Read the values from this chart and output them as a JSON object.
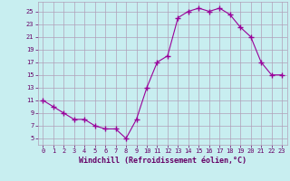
{
  "x": [
    0,
    1,
    2,
    3,
    4,
    5,
    6,
    7,
    8,
    9,
    10,
    11,
    12,
    13,
    14,
    15,
    16,
    17,
    18,
    19,
    20,
    21,
    22,
    23
  ],
  "y": [
    11,
    10,
    9,
    8,
    8,
    7,
    6.5,
    6.5,
    5,
    8,
    13,
    17,
    18,
    24,
    25,
    25.5,
    25,
    25.5,
    24.5,
    22.5,
    21,
    17,
    15,
    15
  ],
  "line_color": "#990099",
  "marker": "+",
  "marker_size": 4,
  "bg_color": "#c8eef0",
  "grid_color": "#b0a0b8",
  "xlabel": "Windchill (Refroidissement éolien,°C)",
  "xlabel_color": "#660066",
  "ylabel_ticks": [
    5,
    7,
    9,
    11,
    13,
    15,
    17,
    19,
    21,
    23,
    25
  ],
  "ylim": [
    4.0,
    26.5
  ],
  "xlim": [
    -0.5,
    23.5
  ],
  "xtick_labels": [
    "0",
    "1",
    "2",
    "3",
    "4",
    "5",
    "6",
    "7",
    "8",
    "9",
    "10",
    "11",
    "12",
    "13",
    "14",
    "15",
    "16",
    "17",
    "18",
    "19",
    "20",
    "21",
    "22",
    "23"
  ],
  "tick_color": "#660066",
  "label_fontsize": 5.0,
  "xlabel_fontsize": 6.0,
  "linewidth": 0.8,
  "marker_color": "#990099"
}
